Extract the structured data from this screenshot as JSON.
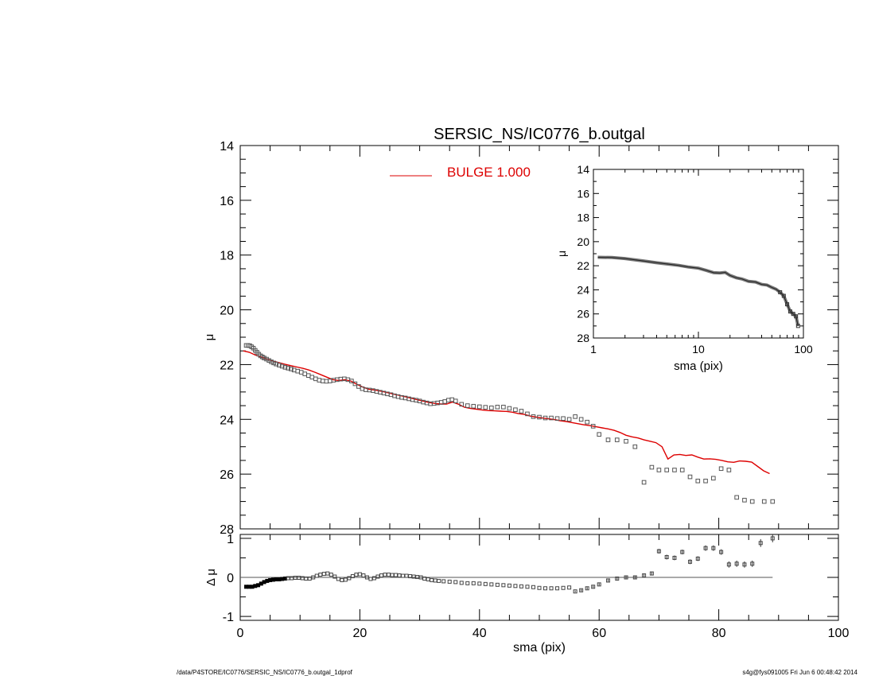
{
  "chart_data": [
    {
      "type": "scatter",
      "panel": "main",
      "title": "SERSIC_NS/IC0776_b.outgal",
      "xlabel": "",
      "ylabel": "μ",
      "xlim": [
        0,
        100
      ],
      "ylim": [
        28,
        14
      ],
      "y_inverted": true,
      "xticks": [],
      "yticks": [
        14,
        16,
        18,
        20,
        22,
        24,
        26,
        28
      ],
      "legend": {
        "placement": "top",
        "entries": [
          {
            "label": "BULGE  1.000",
            "color": "#dd0000"
          }
        ]
      },
      "series": [
        {
          "role": "data points",
          "marker": "square",
          "x": [
            1.0,
            1.3,
            1.6,
            1.9,
            2.2,
            2.5,
            2.8,
            3.1,
            3.4,
            3.7,
            4.0,
            4.4,
            4.8,
            5.2,
            5.6,
            6.0,
            6.5,
            7.0,
            7.5,
            8.0,
            8.5,
            9.0,
            9.6,
            10.2,
            10.8,
            11.4,
            12.0,
            12.6,
            13.2,
            13.8,
            14.4,
            15.0,
            15.6,
            16.2,
            16.8,
            17.4,
            18.0,
            18.6,
            19.2,
            19.8,
            20.4,
            21.0,
            21.6,
            22.2,
            22.8,
            23.4,
            24.0,
            24.6,
            25.2,
            25.8,
            26.4,
            27.0,
            27.6,
            28.2,
            28.8,
            29.4,
            30.0,
            30.6,
            31.2,
            31.8,
            32.4,
            33.0,
            33.6,
            34.2,
            34.8,
            35.4,
            36.0,
            37.0,
            38.0,
            39.0,
            40.0,
            41.0,
            42.0,
            43.0,
            44.0,
            45.0,
            46.0,
            47.0,
            48.0,
            49.0,
            50.0,
            51.0,
            52.0,
            53.0,
            54.0,
            55.0,
            56.0,
            57.0,
            58.0,
            59.0,
            60.0,
            61.5,
            63.0,
            64.5,
            66.0,
            67.5,
            68.8,
            70.0,
            71.3,
            72.6,
            73.9,
            75.2,
            76.5,
            77.8,
            79.1,
            80.4,
            81.7,
            83.0,
            84.3,
            85.6,
            87.6,
            89.0
          ],
          "y": [
            21.3,
            21.3,
            21.31,
            21.35,
            21.4,
            21.48,
            21.55,
            21.62,
            21.68,
            21.72,
            21.76,
            21.8,
            21.85,
            21.9,
            21.94,
            21.98,
            22.02,
            22.06,
            22.1,
            22.13,
            22.16,
            22.2,
            22.24,
            22.28,
            22.34,
            22.4,
            22.46,
            22.52,
            22.57,
            22.6,
            22.61,
            22.6,
            22.57,
            22.55,
            22.53,
            22.52,
            22.55,
            22.6,
            22.7,
            22.8,
            22.88,
            22.92,
            22.93,
            22.95,
            22.98,
            23.01,
            23.04,
            23.07,
            23.1,
            23.14,
            23.17,
            23.2,
            23.22,
            23.25,
            23.28,
            23.3,
            23.33,
            23.37,
            23.4,
            23.43,
            23.42,
            23.4,
            23.38,
            23.35,
            23.3,
            23.28,
            23.33,
            23.45,
            23.5,
            23.52,
            23.54,
            23.56,
            23.58,
            23.55,
            23.55,
            23.6,
            23.65,
            23.7,
            23.8,
            23.9,
            23.92,
            23.95,
            23.95,
            23.97,
            23.97,
            24.0,
            23.9,
            24.0,
            24.1,
            24.25,
            24.55,
            24.75,
            24.75,
            24.8,
            25.0,
            26.3,
            25.75,
            25.85,
            25.85,
            25.85,
            25.85,
            26.1,
            26.25,
            26.25,
            26.15,
            25.8,
            25.85,
            26.85,
            26.95,
            27.0,
            27.0,
            27.0
          ],
          "note_excluded": []
        },
        {
          "name": "BULGE  1.000",
          "role": "model",
          "color": "#dd0000",
          "x": [
            0.5,
            1.5,
            2.5,
            3.5,
            4.5,
            5.5,
            6.5,
            7.5,
            8.5,
            9.5,
            10.5,
            11.5,
            12.5,
            13.5,
            14.5,
            15.5,
            16.5,
            17.5,
            18.5,
            19.5,
            20.5,
            21.5,
            22.5,
            23.5,
            24.5,
            25.5,
            26.5,
            27.5,
            28.5,
            29.5,
            30.5,
            31.5,
            32.5,
            33.5,
            34.5,
            35.5,
            36.5,
            37.5,
            38.5,
            39.5,
            40.5,
            41.5,
            42.5,
            43.5,
            44.5,
            45.5,
            46.5,
            47.5,
            48.5,
            49.5,
            50.5,
            51.5,
            52.5,
            53.5,
            54.5,
            55.5,
            56.5,
            57.5,
            58.5,
            59.5,
            60.5,
            61.5,
            62.5,
            63.5,
            64.5,
            65.5,
            66.5,
            67.5,
            68.5,
            69.5,
            70.5,
            71.5,
            72.5,
            73.5,
            74.5,
            75.5,
            76.5,
            77.5,
            78.5,
            79.5,
            80.5,
            81.5,
            82.5,
            83.5,
            84.5,
            85.5,
            86.5,
            87.5,
            88.5
          ],
          "y": [
            21.5,
            21.55,
            21.65,
            21.72,
            21.8,
            21.87,
            21.93,
            21.99,
            22.04,
            22.09,
            22.14,
            22.2,
            22.28,
            22.37,
            22.46,
            22.55,
            22.58,
            22.55,
            22.6,
            22.72,
            22.82,
            22.9,
            22.93,
            22.97,
            23.02,
            23.07,
            23.12,
            23.17,
            23.22,
            23.28,
            23.33,
            23.38,
            23.42,
            23.44,
            23.44,
            23.37,
            23.45,
            23.56,
            23.6,
            23.63,
            23.66,
            23.68,
            23.69,
            23.7,
            23.71,
            23.74,
            23.79,
            23.82,
            23.88,
            23.92,
            23.95,
            23.98,
            24.01,
            24.05,
            24.08,
            24.12,
            24.16,
            24.2,
            24.23,
            24.27,
            24.31,
            24.35,
            24.4,
            24.48,
            24.58,
            24.64,
            24.68,
            24.75,
            24.8,
            24.85,
            25.0,
            25.45,
            25.3,
            25.28,
            25.32,
            25.3,
            25.38,
            25.45,
            25.44,
            25.46,
            25.5,
            25.55,
            25.57,
            25.52,
            25.53,
            25.56,
            25.72,
            25.88,
            25.98
          ],
          "note_excluded": []
        }
      ]
    },
    {
      "type": "line",
      "panel": "inset",
      "xlabel": "sma (pix)",
      "ylabel": "μ",
      "xscale": "log",
      "xlim": [
        1,
        100
      ],
      "ylim": [
        28,
        14
      ],
      "y_inverted": true,
      "xticks": [
        1,
        10,
        100
      ],
      "yticks": [
        14,
        16,
        18,
        20,
        22,
        24,
        26,
        28
      ],
      "series": [
        {
          "role": "data points",
          "x": [
            1.1,
            1.5,
            2.0,
            3.0,
            4.0,
            5.0,
            6.5,
            8.0,
            10.0,
            12.0,
            14.0,
            16.0,
            18.0,
            20.0,
            23.0,
            26.0,
            30.0,
            35.0,
            40.0,
            45.0,
            50.0,
            55.0,
            60.0,
            65.0,
            70.0,
            75.0,
            80.0,
            85.0,
            89.0
          ],
          "y": [
            21.3,
            21.32,
            21.4,
            21.6,
            21.75,
            21.85,
            21.97,
            22.1,
            22.2,
            22.4,
            22.58,
            22.6,
            22.55,
            22.8,
            23.0,
            23.1,
            23.3,
            23.35,
            23.55,
            23.6,
            23.8,
            23.95,
            24.2,
            24.5,
            25.2,
            25.8,
            26.0,
            26.2,
            27.0
          ],
          "note_excluded": []
        }
      ]
    },
    {
      "type": "scatter",
      "panel": "residuals",
      "xlabel": "sma (pix)",
      "ylabel": "Δ μ",
      "xlim": [
        0,
        100
      ],
      "ylim": [
        -1.1,
        1.1
      ],
      "xticks": [
        0,
        20,
        40,
        60,
        80,
        100
      ],
      "yticks": [
        1,
        0,
        -1
      ],
      "reference_line": 0,
      "series": [
        {
          "role": "residuals",
          "x": [
            1.0,
            1.5,
            2.0,
            2.5,
            3.0,
            3.5,
            4.0,
            4.5,
            5.0,
            5.5,
            6.0,
            6.5,
            7.0,
            7.5,
            8.0,
            8.6,
            9.2,
            9.8,
            10.4,
            11.0,
            11.6,
            12.2,
            12.8,
            13.4,
            14.0,
            14.6,
            15.2,
            15.8,
            16.4,
            17.0,
            17.6,
            18.2,
            18.8,
            19.4,
            20.0,
            20.6,
            21.2,
            21.8,
            22.4,
            23.0,
            23.6,
            24.2,
            24.8,
            25.4,
            26.0,
            26.6,
            27.2,
            27.8,
            28.4,
            29.0,
            29.6,
            30.2,
            30.8,
            31.4,
            32.0,
            32.6,
            33.2,
            34.0,
            35.0,
            36.0,
            37.0,
            38.0,
            39.0,
            40.0,
            41.0,
            42.0,
            43.0,
            44.0,
            45.0,
            46.0,
            47.0,
            48.0,
            49.0,
            50.0,
            51.0,
            52.0,
            53.0,
            54.0,
            55.0,
            56.0,
            57.0,
            58.0,
            59.0,
            60.0,
            61.5,
            63.0,
            64.5,
            66.0,
            67.5,
            68.8,
            70.0,
            71.3,
            72.6,
            73.9,
            75.2,
            76.5,
            77.8,
            79.1,
            80.4,
            81.7,
            83.0,
            84.3,
            85.6,
            87.0,
            89.0
          ],
          "y": [
            -0.24,
            -0.24,
            -0.24,
            -0.22,
            -0.2,
            -0.16,
            -0.12,
            -0.09,
            -0.07,
            -0.06,
            -0.05,
            -0.05,
            -0.04,
            -0.03,
            -0.02,
            -0.02,
            -0.01,
            -0.01,
            -0.02,
            -0.03,
            -0.03,
            0.0,
            0.04,
            0.07,
            0.09,
            0.1,
            0.07,
            0.02,
            -0.04,
            -0.07,
            -0.06,
            -0.02,
            0.03,
            0.07,
            0.08,
            0.05,
            0.0,
            -0.04,
            -0.02,
            0.02,
            0.05,
            0.07,
            0.07,
            0.06,
            0.06,
            0.05,
            0.04,
            0.04,
            0.03,
            0.02,
            0.01,
            0.0,
            -0.03,
            -0.05,
            -0.07,
            -0.08,
            -0.09,
            -0.1,
            -0.11,
            -0.12,
            -0.14,
            -0.15,
            -0.15,
            -0.16,
            -0.17,
            -0.18,
            -0.19,
            -0.2,
            -0.21,
            -0.22,
            -0.23,
            -0.24,
            -0.25,
            -0.27,
            -0.28,
            -0.28,
            -0.28,
            -0.27,
            -0.26,
            -0.36,
            -0.33,
            -0.28,
            -0.24,
            -0.18,
            -0.08,
            -0.03,
            0.0,
            0.0,
            0.05,
            0.1,
            0.67,
            0.52,
            0.5,
            0.65,
            0.4,
            0.48,
            0.75,
            0.75,
            0.65,
            0.33,
            0.35,
            0.33,
            0.35,
            0.88,
            1.0
          ],
          "error_bars": [
            0.0,
            0.0,
            0.0,
            0.0,
            0.0,
            0.0,
            0.0,
            0.0,
            0.0,
            0.0,
            0.0,
            0.0,
            0.0,
            0.0,
            0.0,
            0.0,
            0.0,
            0.0,
            0.0,
            0.0,
            0.0,
            0.0,
            0.0,
            0.0,
            0.0,
            0.0,
            0.0,
            0.0,
            0.0,
            0.0,
            0.0,
            0.0,
            0.0,
            0.0,
            0.0,
            0.0,
            0.0,
            0.0,
            0.0,
            0.0,
            0.0,
            0.0,
            0.0,
            0.0,
            0.0,
            0.0,
            0.0,
            0.0,
            0.0,
            0.0,
            0.0,
            0.0,
            0.0,
            0.0,
            0.0,
            0.0,
            0.0,
            0.0,
            0.0,
            0.0,
            0.0,
            0.0,
            0.0,
            0.0,
            0.0,
            0.0,
            0.0,
            0.0,
            0.0,
            0.0,
            0.0,
            0.0,
            0.0,
            0.0,
            0.0,
            0.0,
            0.0,
            0.0,
            0.0,
            0.02,
            0.03,
            0.03,
            0.03,
            0.03,
            0.03,
            0.03,
            0.03,
            0.04,
            0.04,
            0.04,
            0.06,
            0.06,
            0.06,
            0.06,
            0.06,
            0.06,
            0.07,
            0.07,
            0.07,
            0.08,
            0.08,
            0.08,
            0.08,
            0.1,
            0.1
          ]
        }
      ]
    }
  ],
  "footer": {
    "left": "/data/P4STORE/IC0776/SERSIC_NS/IC0776_b.outgal_1dprof",
    "right": "s4g@fys091005  Fri Jun  6 00:48:42 2014"
  }
}
